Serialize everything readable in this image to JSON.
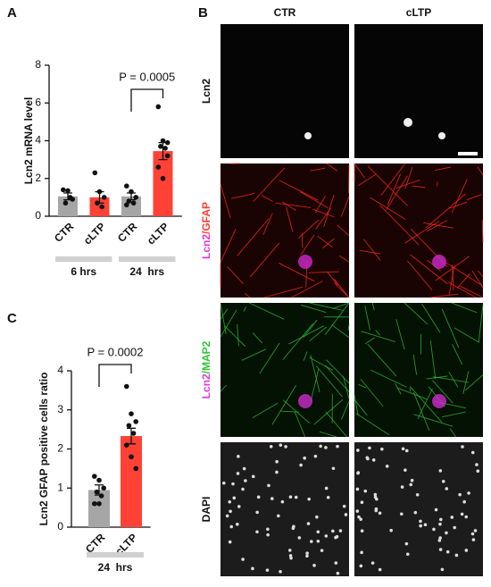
{
  "chart_data": [
    {
      "type": "bar",
      "panel": "A",
      "ylabel": "Lcn2 mRNA level",
      "categories": [
        "CTR",
        "cLTP",
        "CTR",
        "cLTP"
      ],
      "values": [
        1.05,
        1.0,
        1.05,
        3.45
      ],
      "errors": [
        0.18,
        0.3,
        0.18,
        0.45
      ],
      "points": [
        [
          1.4,
          1.35,
          0.9,
          0.7,
          1.0
        ],
        [
          2.3,
          1.3,
          1.0,
          0.7,
          0.5
        ],
        [
          1.6,
          1.3,
          1.0,
          0.8,
          0.7,
          0.6
        ],
        [
          5.8,
          4.0,
          3.9,
          3.7,
          3.6,
          2.6,
          2.0,
          3.2
        ]
      ],
      "colors": [
        "#a6a6a6",
        "#ff4136",
        "#a6a6a6",
        "#ff4136"
      ],
      "group_labels": [
        "6 hrs",
        "24  hrs"
      ],
      "annotation": "P = 0.0005",
      "ylim": [
        0,
        8
      ],
      "yticks": [
        0,
        2,
        4,
        6,
        8
      ]
    },
    {
      "type": "bar",
      "panel": "C",
      "ylabel": "Lcn2 GFAP positive cells ratio",
      "categories": [
        "CTR",
        "cLTP"
      ],
      "values": [
        0.95,
        2.33
      ],
      "errors": [
        0.13,
        0.2
      ],
      "points": [
        [
          1.3,
          1.2,
          1.0,
          0.9,
          0.8,
          0.6,
          0.6
        ],
        [
          3.6,
          2.9,
          2.7,
          2.6,
          2.4,
          2.1,
          1.8,
          1.5
        ]
      ],
      "colors": [
        "#a6a6a6",
        "#ff4136"
      ],
      "group_labels": [
        "24  hrs"
      ],
      "annotation": "P = 0.0002",
      "ylim": [
        0,
        4
      ],
      "yticks": [
        0,
        1,
        2,
        3,
        4
      ]
    }
  ],
  "panel_b": {
    "label": "B",
    "columns": [
      "CTR",
      "cLTP"
    ],
    "rows": [
      [
        "Lcn2"
      ],
      [
        "Lcn2",
        "/GFAP"
      ],
      [
        "Lcn2",
        "/MAP2"
      ],
      [
        "DAPI"
      ]
    ]
  }
}
